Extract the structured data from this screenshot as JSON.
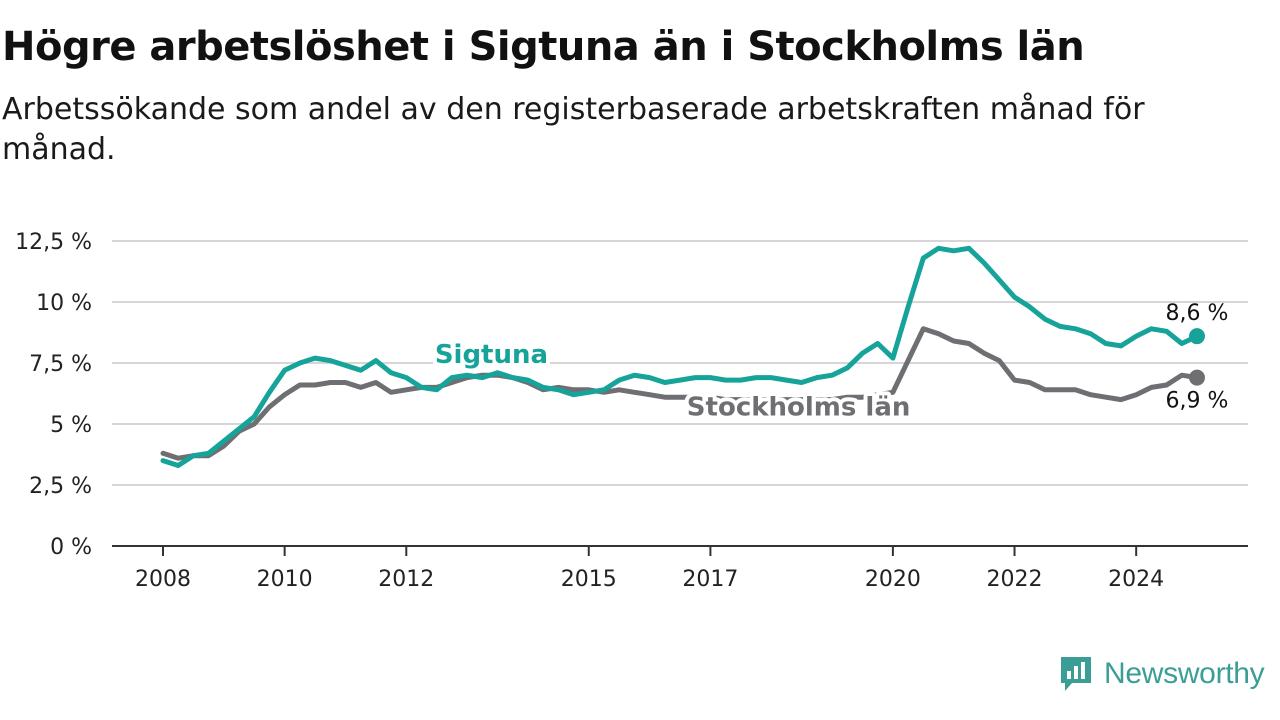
{
  "title": "Högre arbetslöshet i Sigtuna än i Stockholms län",
  "subtitle": "Arbetssökande som andel av den registerbaserade arbetskraften månad för månad.",
  "brand": {
    "name": "Newsworthy",
    "icon": "newsworthy-logo-icon"
  },
  "colors": {
    "sigtuna": "#16a39a",
    "stockholm": "#6e6e73",
    "grid": "#d6d6d6",
    "axis": "#333333"
  },
  "chart_data": {
    "type": "line",
    "x_ticks": [
      "2008",
      "2010",
      "2012",
      "2015",
      "2017",
      "2020",
      "2022",
      "2024"
    ],
    "y_ticks": [
      "0 %",
      "2,5 %",
      "5 %",
      "7,5 %",
      "10 %",
      "12,5 %"
    ],
    "ylim": [
      0,
      12.5
    ],
    "xlim": [
      2008.0,
      2025.0
    ],
    "grid": true,
    "series": [
      {
        "name": "Sigtuna",
        "end_label": "8,6 %",
        "points": [
          [
            2008.0,
            3.5
          ],
          [
            2008.25,
            3.3
          ],
          [
            2008.5,
            3.7
          ],
          [
            2008.75,
            3.8
          ],
          [
            2009.0,
            4.3
          ],
          [
            2009.25,
            4.8
          ],
          [
            2009.5,
            5.3
          ],
          [
            2009.75,
            6.3
          ],
          [
            2010.0,
            7.2
          ],
          [
            2010.25,
            7.5
          ],
          [
            2010.5,
            7.7
          ],
          [
            2010.75,
            7.6
          ],
          [
            2011.0,
            7.4
          ],
          [
            2011.25,
            7.2
          ],
          [
            2011.5,
            7.6
          ],
          [
            2011.75,
            7.1
          ],
          [
            2012.0,
            6.9
          ],
          [
            2012.25,
            6.5
          ],
          [
            2012.5,
            6.4
          ],
          [
            2012.75,
            6.9
          ],
          [
            2013.0,
            7.0
          ],
          [
            2013.25,
            6.9
          ],
          [
            2013.5,
            7.1
          ],
          [
            2013.75,
            6.9
          ],
          [
            2014.0,
            6.8
          ],
          [
            2014.25,
            6.5
          ],
          [
            2014.5,
            6.4
          ],
          [
            2014.75,
            6.2
          ],
          [
            2015.0,
            6.3
          ],
          [
            2015.25,
            6.4
          ],
          [
            2015.5,
            6.8
          ],
          [
            2015.75,
            7.0
          ],
          [
            2016.0,
            6.9
          ],
          [
            2016.25,
            6.7
          ],
          [
            2016.5,
            6.8
          ],
          [
            2016.75,
            6.9
          ],
          [
            2017.0,
            6.9
          ],
          [
            2017.25,
            6.8
          ],
          [
            2017.5,
            6.8
          ],
          [
            2017.75,
            6.9
          ],
          [
            2018.0,
            6.9
          ],
          [
            2018.25,
            6.8
          ],
          [
            2018.5,
            6.7
          ],
          [
            2018.75,
            6.9
          ],
          [
            2019.0,
            7.0
          ],
          [
            2019.25,
            7.3
          ],
          [
            2019.5,
            7.9
          ],
          [
            2019.75,
            8.3
          ],
          [
            2020.0,
            7.7
          ],
          [
            2020.25,
            9.8
          ],
          [
            2020.5,
            11.8
          ],
          [
            2020.75,
            12.2
          ],
          [
            2021.0,
            12.1
          ],
          [
            2021.25,
            12.2
          ],
          [
            2021.5,
            11.6
          ],
          [
            2021.75,
            10.9
          ],
          [
            2022.0,
            10.2
          ],
          [
            2022.25,
            9.8
          ],
          [
            2022.5,
            9.3
          ],
          [
            2022.75,
            9.0
          ],
          [
            2023.0,
            8.9
          ],
          [
            2023.25,
            8.7
          ],
          [
            2023.5,
            8.3
          ],
          [
            2023.75,
            8.2
          ],
          [
            2024.0,
            8.6
          ],
          [
            2024.25,
            8.9
          ],
          [
            2024.5,
            8.8
          ],
          [
            2024.75,
            8.3
          ],
          [
            2025.0,
            8.6
          ]
        ]
      },
      {
        "name": "Stockholms län",
        "end_label": "6,9 %",
        "points": [
          [
            2008.0,
            3.8
          ],
          [
            2008.25,
            3.6
          ],
          [
            2008.5,
            3.7
          ],
          [
            2008.75,
            3.7
          ],
          [
            2009.0,
            4.1
          ],
          [
            2009.25,
            4.7
          ],
          [
            2009.5,
            5.0
          ],
          [
            2009.75,
            5.7
          ],
          [
            2010.0,
            6.2
          ],
          [
            2010.25,
            6.6
          ],
          [
            2010.5,
            6.6
          ],
          [
            2010.75,
            6.7
          ],
          [
            2011.0,
            6.7
          ],
          [
            2011.25,
            6.5
          ],
          [
            2011.5,
            6.7
          ],
          [
            2011.75,
            6.3
          ],
          [
            2012.0,
            6.4
          ],
          [
            2012.25,
            6.5
          ],
          [
            2012.5,
            6.5
          ],
          [
            2012.75,
            6.7
          ],
          [
            2013.0,
            6.9
          ],
          [
            2013.25,
            7.0
          ],
          [
            2013.5,
            7.0
          ],
          [
            2013.75,
            6.9
          ],
          [
            2014.0,
            6.7
          ],
          [
            2014.25,
            6.4
          ],
          [
            2014.5,
            6.5
          ],
          [
            2014.75,
            6.4
          ],
          [
            2015.0,
            6.4
          ],
          [
            2015.25,
            6.3
          ],
          [
            2015.5,
            6.4
          ],
          [
            2015.75,
            6.3
          ],
          [
            2016.0,
            6.2
          ],
          [
            2016.25,
            6.1
          ],
          [
            2016.5,
            6.1
          ],
          [
            2016.75,
            6.1
          ],
          [
            2017.0,
            6.1
          ],
          [
            2017.25,
            6.0
          ],
          [
            2017.5,
            6.0
          ],
          [
            2017.75,
            6.0
          ],
          [
            2018.0,
            6.0
          ],
          [
            2018.25,
            6.0
          ],
          [
            2018.5,
            6.0
          ],
          [
            2018.75,
            6.0
          ],
          [
            2019.0,
            6.0
          ],
          [
            2019.25,
            6.1
          ],
          [
            2019.5,
            6.1
          ],
          [
            2019.75,
            6.2
          ],
          [
            2020.0,
            6.3
          ],
          [
            2020.25,
            7.6
          ],
          [
            2020.5,
            8.9
          ],
          [
            2020.75,
            8.7
          ],
          [
            2021.0,
            8.4
          ],
          [
            2021.25,
            8.3
          ],
          [
            2021.5,
            7.9
          ],
          [
            2021.75,
            7.6
          ],
          [
            2022.0,
            6.8
          ],
          [
            2022.25,
            6.7
          ],
          [
            2022.5,
            6.4
          ],
          [
            2022.75,
            6.4
          ],
          [
            2023.0,
            6.4
          ],
          [
            2023.25,
            6.2
          ],
          [
            2023.5,
            6.1
          ],
          [
            2023.75,
            6.0
          ],
          [
            2024.0,
            6.2
          ],
          [
            2024.25,
            6.5
          ],
          [
            2024.5,
            6.6
          ],
          [
            2024.75,
            7.0
          ],
          [
            2025.0,
            6.9
          ]
        ]
      }
    ]
  }
}
